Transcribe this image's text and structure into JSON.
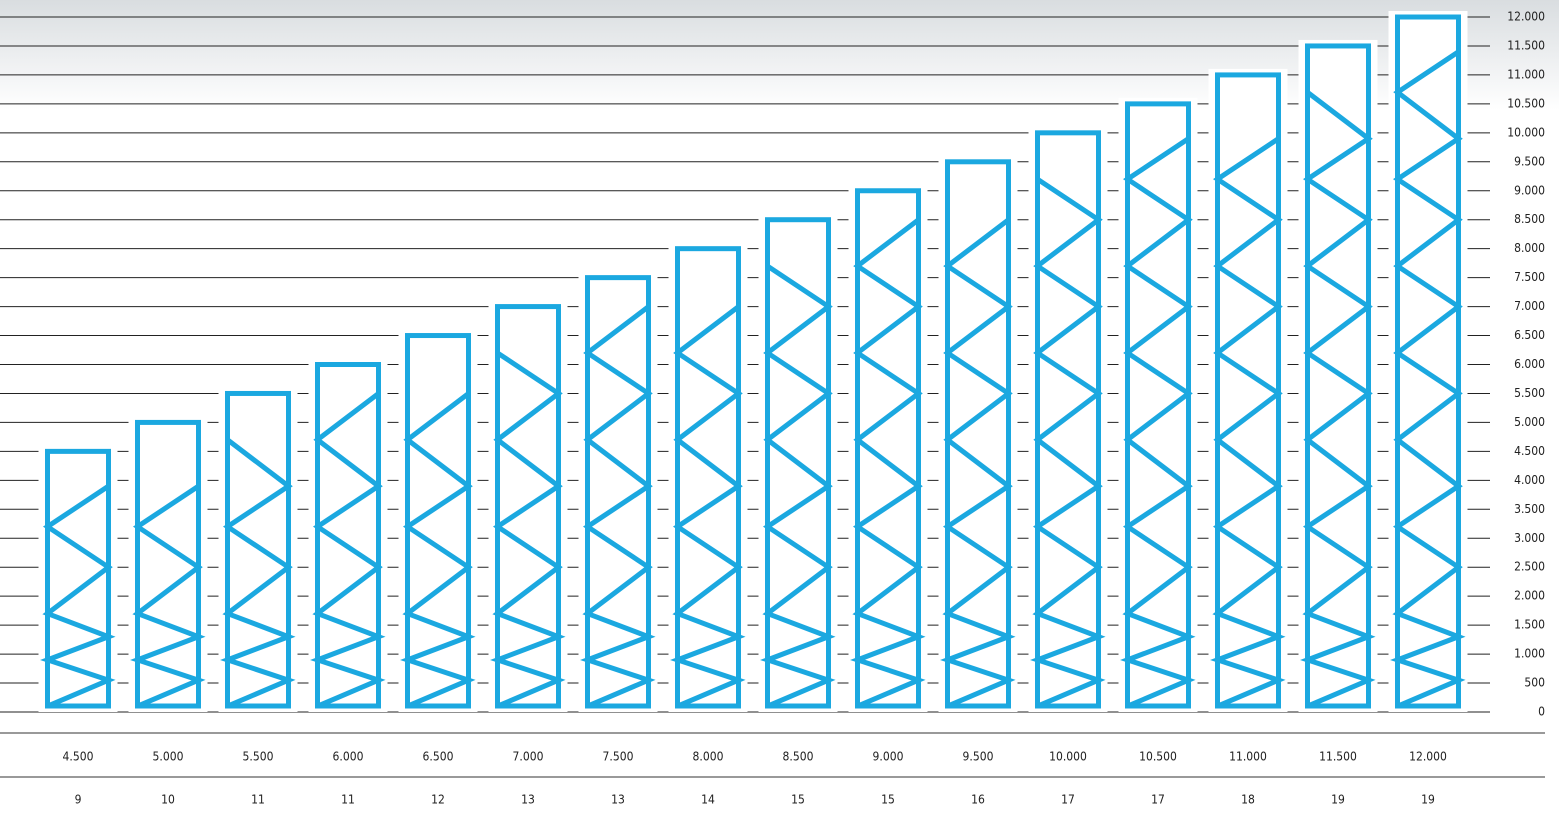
{
  "chart_data": {
    "type": "frame",
    "values": [
      4500,
      5000,
      5500,
      6000,
      6500,
      7000,
      7500,
      8000,
      8500,
      9000,
      9500,
      10000,
      10500,
      11000,
      11500,
      12000
    ],
    "value_labels": [
      "4.500",
      "5.000",
      "5.500",
      "6.000",
      "6.500",
      "7.000",
      "7.500",
      "8.000",
      "8.500",
      "9.000",
      "9.500",
      "10.000",
      "10.500",
      "11.000",
      "11.500",
      "12.000"
    ],
    "counts": [
      9,
      10,
      11,
      11,
      12,
      13,
      13,
      14,
      15,
      15,
      16,
      17,
      17,
      18,
      19,
      19
    ],
    "color": "#1ba8e0",
    "ylim": [
      0,
      12000
    ],
    "yticks": [
      0,
      500,
      {
        "value": 1000,
        "label": "1.000"
      },
      {
        "value": 1500,
        "label": "1.500"
      },
      {
        "value": 2000,
        "label": "2.000"
      },
      {
        "value": 2500,
        "label": "2.500"
      },
      {
        "value": 3000,
        "label": "3.000"
      },
      {
        "value": 3500,
        "label": "3.500"
      },
      {
        "value": 4000,
        "label": "4.000"
      },
      {
        "value": 4500,
        "label": "4.500"
      },
      {
        "value": 5000,
        "label": "5.000"
      },
      {
        "value": 5500,
        "label": "5.500"
      },
      {
        "value": 6000,
        "label": "6.000"
      },
      {
        "value": 6500,
        "label": "6.500"
      },
      {
        "value": 7000,
        "label": "7.000"
      },
      {
        "value": 7500,
        "label": "7.500"
      },
      {
        "value": 8000,
        "label": "8.000"
      },
      {
        "value": 8500,
        "label": "8.500"
      },
      {
        "value": 9000,
        "label": "9.000"
      },
      {
        "value": 9500,
        "label": "9.500"
      },
      {
        "value": 10000,
        "label": "10.000"
      },
      {
        "value": 10500,
        "label": "10.500"
      },
      {
        "value": 11000,
        "label": "11.000"
      },
      {
        "value": 11500,
        "label": "11.500"
      },
      {
        "value": 12000,
        "label": "12.000"
      }
    ],
    "grid": true
  }
}
